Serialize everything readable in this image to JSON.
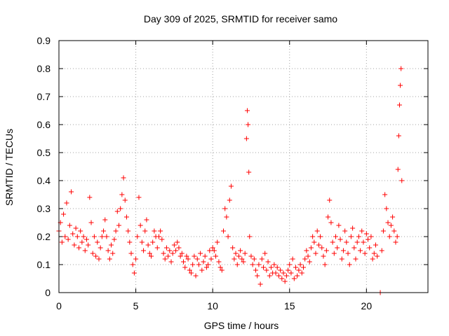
{
  "chart_data": {
    "type": "scatter",
    "title": "Day 309 of 2025, SRMTID for receiver samo",
    "xlabel": "GPS time / hours",
    "ylabel": "SRMTID / TECUs",
    "xlim": [
      0,
      24
    ],
    "ylim": [
      0,
      0.9
    ],
    "x_ticks": [
      0,
      5,
      10,
      15,
      20
    ],
    "x_tick_labels": [
      "0",
      "5",
      "10",
      "15",
      "20"
    ],
    "y_ticks": [
      0,
      0.1,
      0.2,
      0.3,
      0.4,
      0.5,
      0.6,
      0.7,
      0.8,
      0.9
    ],
    "y_tick_labels": [
      "0",
      "0.1",
      "0.2",
      "0.3",
      "0.4",
      "0.5",
      "0.6",
      "0.7",
      "0.8",
      "0.9"
    ],
    "grid": true,
    "marker": "+",
    "series": [
      {
        "name": "samo",
        "color": "#ff0000",
        "points": [
          [
            0.0,
            0.22
          ],
          [
            0.1,
            0.25
          ],
          [
            0.2,
            0.18
          ],
          [
            0.3,
            0.28
          ],
          [
            0.4,
            0.2
          ],
          [
            0.5,
            0.32
          ],
          [
            0.6,
            0.19
          ],
          [
            0.7,
            0.24
          ],
          [
            0.8,
            0.36
          ],
          [
            0.9,
            0.21
          ],
          [
            1.0,
            0.17
          ],
          [
            1.1,
            0.23
          ],
          [
            1.2,
            0.2
          ],
          [
            1.3,
            0.16
          ],
          [
            1.4,
            0.22
          ],
          [
            1.5,
            0.18
          ],
          [
            1.6,
            0.2
          ],
          [
            1.7,
            0.15
          ],
          [
            1.8,
            0.19
          ],
          [
            1.9,
            0.17
          ],
          [
            2.0,
            0.34
          ],
          [
            2.1,
            0.25
          ],
          [
            2.2,
            0.14
          ],
          [
            2.3,
            0.2
          ],
          [
            2.4,
            0.13
          ],
          [
            2.5,
            0.18
          ],
          [
            2.6,
            0.12
          ],
          [
            2.7,
            0.16
          ],
          [
            2.8,
            0.2
          ],
          [
            2.9,
            0.22
          ],
          [
            3.0,
            0.26
          ],
          [
            3.1,
            0.2
          ],
          [
            3.2,
            0.15
          ],
          [
            3.3,
            0.12
          ],
          [
            3.4,
            0.17
          ],
          [
            3.5,
            0.14
          ],
          [
            3.6,
            0.19
          ],
          [
            3.7,
            0.22
          ],
          [
            3.8,
            0.29
          ],
          [
            3.9,
            0.24
          ],
          [
            4.0,
            0.3
          ],
          [
            4.1,
            0.35
          ],
          [
            4.2,
            0.41
          ],
          [
            4.3,
            0.33
          ],
          [
            4.4,
            0.27
          ],
          [
            4.5,
            0.22
          ],
          [
            4.6,
            0.18
          ],
          [
            4.7,
            0.14
          ],
          [
            4.8,
            0.1
          ],
          [
            4.9,
            0.07
          ],
          [
            5.0,
            0.12
          ],
          [
            5.1,
            0.2
          ],
          [
            5.2,
            0.34
          ],
          [
            5.3,
            0.24
          ],
          [
            5.4,
            0.18
          ],
          [
            5.5,
            0.15
          ],
          [
            5.6,
            0.22
          ],
          [
            5.7,
            0.26
          ],
          [
            5.8,
            0.17
          ],
          [
            5.9,
            0.14
          ],
          [
            6.0,
            0.13
          ],
          [
            6.1,
            0.18
          ],
          [
            6.2,
            0.22
          ],
          [
            6.3,
            0.2
          ],
          [
            6.4,
            0.16
          ],
          [
            6.5,
            0.2
          ],
          [
            6.6,
            0.22
          ],
          [
            6.7,
            0.19
          ],
          [
            6.8,
            0.14
          ],
          [
            6.9,
            0.12
          ],
          [
            7.0,
            0.16
          ],
          [
            7.1,
            0.13
          ],
          [
            7.2,
            0.15
          ],
          [
            7.3,
            0.11
          ],
          [
            7.4,
            0.14
          ],
          [
            7.5,
            0.17
          ],
          [
            7.6,
            0.15
          ],
          [
            7.7,
            0.18
          ],
          [
            7.8,
            0.16
          ],
          [
            7.9,
            0.13
          ],
          [
            8.0,
            0.14
          ],
          [
            8.1,
            0.11
          ],
          [
            8.2,
            0.09
          ],
          [
            8.3,
            0.13
          ],
          [
            8.4,
            0.12
          ],
          [
            8.5,
            0.08
          ],
          [
            8.6,
            0.07
          ],
          [
            8.7,
            0.1
          ],
          [
            8.8,
            0.13
          ],
          [
            8.9,
            0.06
          ],
          [
            9.0,
            0.12
          ],
          [
            9.1,
            0.1
          ],
          [
            9.2,
            0.14
          ],
          [
            9.3,
            0.08
          ],
          [
            9.4,
            0.11
          ],
          [
            9.5,
            0.13
          ],
          [
            9.6,
            0.09
          ],
          [
            9.7,
            0.1
          ],
          [
            9.8,
            0.15
          ],
          [
            9.9,
            0.12
          ],
          [
            10.0,
            0.16
          ],
          [
            10.1,
            0.15
          ],
          [
            10.2,
            0.13
          ],
          [
            10.3,
            0.18
          ],
          [
            10.4,
            0.11
          ],
          [
            10.5,
            0.09
          ],
          [
            10.6,
            0.08
          ],
          [
            10.7,
            0.22
          ],
          [
            10.8,
            0.3
          ],
          [
            10.9,
            0.27
          ],
          [
            11.0,
            0.2
          ],
          [
            11.1,
            0.33
          ],
          [
            11.2,
            0.38
          ],
          [
            11.3,
            0.16
          ],
          [
            11.4,
            0.12
          ],
          [
            11.5,
            0.14
          ],
          [
            11.6,
            0.1
          ],
          [
            11.7,
            0.13
          ],
          [
            11.8,
            0.15
          ],
          [
            11.9,
            0.12
          ],
          [
            12.0,
            0.11
          ],
          [
            12.1,
            0.14
          ],
          [
            12.2,
            0.55
          ],
          [
            12.25,
            0.65
          ],
          [
            12.3,
            0.6
          ],
          [
            12.35,
            0.43
          ],
          [
            12.4,
            0.2
          ],
          [
            12.5,
            0.13
          ],
          [
            12.6,
            0.1
          ],
          [
            12.7,
            0.12
          ],
          [
            12.8,
            0.08
          ],
          [
            12.9,
            0.06
          ],
          [
            13.0,
            0.1
          ],
          [
            13.1,
            0.03
          ],
          [
            13.2,
            0.12
          ],
          [
            13.3,
            0.09
          ],
          [
            13.4,
            0.14
          ],
          [
            13.5,
            0.08
          ],
          [
            13.6,
            0.11
          ],
          [
            13.7,
            0.06
          ],
          [
            13.8,
            0.09
          ],
          [
            13.9,
            0.07
          ],
          [
            14.0,
            0.1
          ],
          [
            14.1,
            0.07
          ],
          [
            14.2,
            0.09
          ],
          [
            14.3,
            0.06
          ],
          [
            14.4,
            0.08
          ],
          [
            14.5,
            0.05
          ],
          [
            14.6,
            0.07
          ],
          [
            14.7,
            0.04
          ],
          [
            14.8,
            0.06
          ],
          [
            14.9,
            0.08
          ],
          [
            15.0,
            0.1
          ],
          [
            15.1,
            0.07
          ],
          [
            15.2,
            0.12
          ],
          [
            15.3,
            0.05
          ],
          [
            15.4,
            0.09
          ],
          [
            15.5,
            0.06
          ],
          [
            15.6,
            0.08
          ],
          [
            15.7,
            0.1
          ],
          [
            15.8,
            0.07
          ],
          [
            15.9,
            0.09
          ],
          [
            16.0,
            0.12
          ],
          [
            16.1,
            0.15
          ],
          [
            16.2,
            0.13
          ],
          [
            16.3,
            0.11
          ],
          [
            16.4,
            0.16
          ],
          [
            16.5,
            0.2
          ],
          [
            16.6,
            0.18
          ],
          [
            16.7,
            0.14
          ],
          [
            16.8,
            0.22
          ],
          [
            16.9,
            0.17
          ],
          [
            17.0,
            0.2
          ],
          [
            17.1,
            0.16
          ],
          [
            17.2,
            0.13
          ],
          [
            17.3,
            0.1
          ],
          [
            17.4,
            0.15
          ],
          [
            17.5,
            0.27
          ],
          [
            17.6,
            0.33
          ],
          [
            17.7,
            0.25
          ],
          [
            17.8,
            0.18
          ],
          [
            17.9,
            0.14
          ],
          [
            18.0,
            0.2
          ],
          [
            18.1,
            0.16
          ],
          [
            18.2,
            0.24
          ],
          [
            18.3,
            0.19
          ],
          [
            18.4,
            0.12
          ],
          [
            18.5,
            0.15
          ],
          [
            18.6,
            0.22
          ],
          [
            18.7,
            0.18
          ],
          [
            18.8,
            0.14
          ],
          [
            18.9,
            0.1
          ],
          [
            19.0,
            0.2
          ],
          [
            19.1,
            0.23
          ],
          [
            19.2,
            0.16
          ],
          [
            19.3,
            0.12
          ],
          [
            19.4,
            0.18
          ],
          [
            19.5,
            0.2
          ],
          [
            19.6,
            0.15
          ],
          [
            19.7,
            0.22
          ],
          [
            19.8,
            0.18
          ],
          [
            19.9,
            0.14
          ],
          [
            20.0,
            0.21
          ],
          [
            20.1,
            0.19
          ],
          [
            20.2,
            0.16
          ],
          [
            20.3,
            0.2
          ],
          [
            20.4,
            0.12
          ],
          [
            20.5,
            0.14
          ],
          [
            20.6,
            0.17
          ],
          [
            20.7,
            0.13
          ],
          [
            20.9,
            0.0
          ],
          [
            21.0,
            0.15
          ],
          [
            21.1,
            0.22
          ],
          [
            21.2,
            0.35
          ],
          [
            21.3,
            0.3
          ],
          [
            21.4,
            0.25
          ],
          [
            21.5,
            0.2
          ],
          [
            21.6,
            0.24
          ],
          [
            21.7,
            0.27
          ],
          [
            21.8,
            0.22
          ],
          [
            21.9,
            0.18
          ],
          [
            22.0,
            0.2
          ],
          [
            22.05,
            0.44
          ],
          [
            22.1,
            0.56
          ],
          [
            22.15,
            0.67
          ],
          [
            22.2,
            0.74
          ],
          [
            22.25,
            0.8
          ],
          [
            22.3,
            0.4
          ]
        ]
      }
    ]
  }
}
